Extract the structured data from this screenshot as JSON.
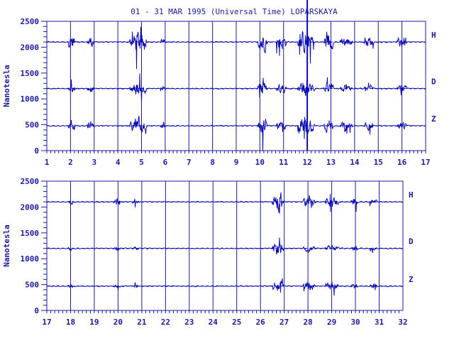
{
  "title": "01 - 31 MAR 1995 (Universal Time) LOPARSKAYA",
  "colors": {
    "trace": "#0a0ab4",
    "axis": "#1a1aa0",
    "background": "#ffffff"
  },
  "chart_data": [
    {
      "type": "line",
      "ylabel": "Nanotesla",
      "xlim": [
        1,
        17
      ],
      "ylim": [
        0,
        2500
      ],
      "x_ticks": [
        "1",
        "2",
        "3",
        "4",
        "5",
        "6",
        "7",
        "8",
        "9",
        "10",
        "11",
        "12",
        "13",
        "14",
        "15",
        "16",
        "17"
      ],
      "y_ticks": [
        "0",
        "500",
        "1000",
        "1500",
        "2000",
        "2500"
      ],
      "grid": "vertical day lines",
      "series": [
        {
          "name": "H",
          "baseline": 2100
        },
        {
          "name": "D",
          "baseline": 1200
        },
        {
          "name": "Z",
          "baseline": 480
        }
      ],
      "disturbances": [
        [
          1.9,
          2.2,
          350
        ],
        [
          2.7,
          3.0,
          250
        ],
        [
          4.5,
          5.2,
          450
        ],
        [
          5.8,
          6.0,
          200
        ],
        [
          9.9,
          10.3,
          450
        ],
        [
          10.7,
          11.1,
          350
        ],
        [
          11.6,
          12.3,
          500
        ],
        [
          12.7,
          13.1,
          400
        ],
        [
          13.4,
          13.9,
          250
        ],
        [
          14.4,
          14.8,
          200
        ],
        [
          15.8,
          16.2,
          250
        ]
      ]
    },
    {
      "type": "line",
      "ylabel": "Nanotesla",
      "xlim": [
        17,
        32
      ],
      "ylim": [
        0,
        2500
      ],
      "x_ticks": [
        "17",
        "18",
        "19",
        "20",
        "21",
        "22",
        "23",
        "24",
        "25",
        "26",
        "27",
        "28",
        "29",
        "30",
        "31",
        "32"
      ],
      "y_ticks": [
        "0",
        "500",
        "1000",
        "1500",
        "2000",
        "2500"
      ],
      "grid": "vertical day lines",
      "series": [
        {
          "name": "H",
          "baseline": 2100
        },
        {
          "name": "D",
          "baseline": 1200
        },
        {
          "name": "Z",
          "baseline": 470
        }
      ],
      "disturbances": [
        [
          17.9,
          18.1,
          120
        ],
        [
          19.8,
          20.1,
          100
        ],
        [
          20.6,
          20.9,
          100
        ],
        [
          26.5,
          27.0,
          450
        ],
        [
          27.8,
          28.3,
          250
        ],
        [
          28.7,
          29.3,
          200
        ],
        [
          29.8,
          30.1,
          150
        ],
        [
          30.6,
          30.9,
          120
        ]
      ]
    }
  ]
}
